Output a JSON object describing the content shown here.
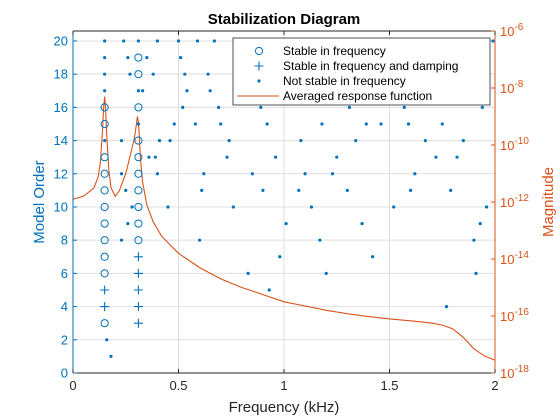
{
  "chart_data": {
    "type": "scatter",
    "title": "Stabilization Diagram",
    "xlabel": "Frequency (kHz)",
    "ylabel": "Model Order",
    "ylabel_right": "Magnitude",
    "xlim": [
      0,
      2
    ],
    "ylim": [
      0,
      20.6
    ],
    "ylim_right_log10": [
      -18,
      -6
    ],
    "x_ticks": [
      0,
      0.5,
      1,
      1.5,
      2
    ],
    "x_tick_labels": [
      "0",
      "0.5",
      "1",
      "1.5",
      "2"
    ],
    "y_ticks": [
      0,
      2,
      4,
      6,
      8,
      10,
      12,
      14,
      16,
      18,
      20
    ],
    "y_tick_labels": [
      "0",
      "2",
      "4",
      "6",
      "8",
      "10",
      "12",
      "14",
      "16",
      "18",
      "20"
    ],
    "y_right_ticks": [
      -18,
      -16,
      -14,
      -12,
      -10,
      -8,
      -6
    ],
    "y_right_tick_base": "10",
    "y_right_tick_exponents": [
      "-18",
      "-16",
      "-14",
      "-12",
      "-10",
      "-8",
      "-6"
    ],
    "grid": true,
    "legend_position": "top-right",
    "colors": {
      "left_axis": "#0072BD",
      "right_axis": "#D95319",
      "grid": "#dfdfdf"
    },
    "series": [
      {
        "name": "Stable in frequency",
        "marker": "circle",
        "points": [
          [
            0.15,
            3
          ],
          [
            0.15,
            6
          ],
          [
            0.15,
            7
          ],
          [
            0.15,
            8
          ],
          [
            0.15,
            9
          ],
          [
            0.15,
            10
          ],
          [
            0.15,
            11
          ],
          [
            0.15,
            12
          ],
          [
            0.15,
            13
          ],
          [
            0.15,
            15
          ],
          [
            0.15,
            16
          ],
          [
            0.31,
            8
          ],
          [
            0.31,
            9
          ],
          [
            0.31,
            10
          ],
          [
            0.31,
            11
          ],
          [
            0.31,
            12
          ],
          [
            0.31,
            13
          ],
          [
            0.31,
            14
          ],
          [
            0.31,
            16
          ],
          [
            0.31,
            18
          ],
          [
            0.31,
            19
          ]
        ]
      },
      {
        "name": "Stable in frequency and damping",
        "marker": "plus",
        "points": [
          [
            0.15,
            4
          ],
          [
            0.15,
            5
          ],
          [
            0.31,
            3
          ],
          [
            0.31,
            4
          ],
          [
            0.31,
            5
          ],
          [
            0.31,
            6
          ],
          [
            0.31,
            7
          ]
        ]
      },
      {
        "name": "Not stable in frequency",
        "marker": "dot",
        "points": [
          [
            0.15,
            14
          ],
          [
            0.15,
            17
          ],
          [
            0.15,
            18
          ],
          [
            0.15,
            19
          ],
          [
            0.15,
            20
          ],
          [
            0.31,
            15
          ],
          [
            0.31,
            17
          ],
          [
            0.31,
            20
          ],
          [
            0.16,
            2
          ],
          [
            0.18,
            1
          ],
          [
            0.23,
            8
          ],
          [
            0.23,
            12
          ],
          [
            0.23,
            14
          ],
          [
            0.24,
            20
          ],
          [
            0.25,
            11
          ],
          [
            0.26,
            9
          ],
          [
            0.26,
            19
          ],
          [
            0.27,
            18
          ],
          [
            0.28,
            10
          ],
          [
            0.33,
            17
          ],
          [
            0.35,
            19
          ],
          [
            0.36,
            13
          ],
          [
            0.38,
            18
          ],
          [
            0.39,
            13
          ],
          [
            0.4,
            20
          ],
          [
            0.41,
            14
          ],
          [
            0.4,
            12
          ],
          [
            0.45,
            10
          ],
          [
            0.46,
            14
          ],
          [
            0.48,
            15
          ],
          [
            0.5,
            20
          ],
          [
            0.51,
            19
          ],
          [
            0.52,
            16
          ],
          [
            0.53,
            18
          ],
          [
            0.54,
            17
          ],
          [
            0.58,
            15
          ],
          [
            0.59,
            20
          ],
          [
            0.6,
            8
          ],
          [
            0.61,
            11
          ],
          [
            0.62,
            12
          ],
          [
            0.64,
            18
          ],
          [
            0.65,
            17
          ],
          [
            0.67,
            20
          ],
          [
            0.69,
            16
          ],
          [
            0.7,
            15
          ],
          [
            0.73,
            13
          ],
          [
            0.74,
            14
          ],
          [
            0.76,
            10
          ],
          [
            0.77,
            17
          ],
          [
            0.8,
            20
          ],
          [
            0.83,
            6
          ],
          [
            0.85,
            12
          ],
          [
            0.86,
            18
          ],
          [
            0.87,
            20
          ],
          [
            0.89,
            16
          ],
          [
            0.9,
            11
          ],
          [
            0.92,
            15
          ],
          [
            0.93,
            5
          ],
          [
            0.94,
            18
          ],
          [
            0.96,
            13
          ],
          [
            0.98,
            7
          ],
          [
            1.0,
            19
          ],
          [
            1.01,
            9
          ],
          [
            1.03,
            18
          ],
          [
            1.05,
            17
          ],
          [
            1.07,
            11
          ],
          [
            1.08,
            14
          ],
          [
            1.09,
            19
          ],
          [
            1.1,
            12
          ],
          [
            1.11,
            17
          ],
          [
            1.13,
            10
          ],
          [
            1.15,
            20
          ],
          [
            1.17,
            8
          ],
          [
            1.18,
            15
          ],
          [
            1.2,
            6
          ],
          [
            1.21,
            20
          ],
          [
            1.22,
            17
          ],
          [
            1.23,
            12
          ],
          [
            1.25,
            13
          ],
          [
            1.26,
            18
          ],
          [
            1.29,
            19
          ],
          [
            1.3,
            11
          ],
          [
            1.31,
            16
          ],
          [
            1.34,
            14
          ],
          [
            1.37,
            9
          ],
          [
            1.39,
            15
          ],
          [
            1.4,
            20
          ],
          [
            1.42,
            7
          ],
          [
            1.43,
            18
          ],
          [
            1.46,
            15
          ],
          [
            1.48,
            17
          ],
          [
            1.5,
            19
          ],
          [
            1.52,
            10
          ],
          [
            1.54,
            19
          ],
          [
            1.57,
            16
          ],
          [
            1.59,
            15
          ],
          [
            1.6,
            11
          ],
          [
            1.62,
            12
          ],
          [
            1.64,
            20
          ],
          [
            1.67,
            14
          ],
          [
            1.69,
            17
          ],
          [
            1.7,
            20
          ],
          [
            1.72,
            13
          ],
          [
            1.73,
            18
          ],
          [
            1.75,
            15
          ],
          [
            1.77,
            4
          ],
          [
            1.79,
            11
          ],
          [
            1.82,
            13
          ],
          [
            1.85,
            14
          ],
          [
            1.86,
            18
          ],
          [
            1.88,
            17
          ],
          [
            1.9,
            8
          ],
          [
            1.91,
            6
          ],
          [
            1.93,
            9
          ],
          [
            1.94,
            16
          ],
          [
            1.96,
            10
          ],
          [
            1.97,
            18
          ],
          [
            1.99,
            20
          ]
        ]
      },
      {
        "name": "Averaged response function",
        "axis": "right",
        "line": true,
        "x": [
          0,
          0.05,
          0.1,
          0.12,
          0.13,
          0.14,
          0.145,
          0.15,
          0.155,
          0.16,
          0.17,
          0.18,
          0.2,
          0.22,
          0.25,
          0.27,
          0.29,
          0.3,
          0.305,
          0.31,
          0.315,
          0.32,
          0.33,
          0.35,
          0.38,
          0.42,
          0.5,
          0.6,
          0.7,
          0.8,
          0.9,
          1.0,
          1.1,
          1.2,
          1.3,
          1.4,
          1.5,
          1.6,
          1.7,
          1.75,
          1.8,
          1.85,
          1.9,
          1.95,
          2.0
        ],
        "log10_magnitude": [
          -11.9,
          -11.8,
          -11.5,
          -11.1,
          -10.6,
          -9.5,
          -8.7,
          -8.3,
          -8.8,
          -9.7,
          -10.9,
          -11.5,
          -11.8,
          -11.6,
          -11.0,
          -10.4,
          -9.8,
          -9.3,
          -9.0,
          -9.2,
          -9.8,
          -10.5,
          -11.3,
          -12.1,
          -12.7,
          -13.2,
          -13.8,
          -14.3,
          -14.7,
          -15.0,
          -15.25,
          -15.5,
          -15.65,
          -15.8,
          -15.92,
          -16.02,
          -16.1,
          -16.17,
          -16.25,
          -16.32,
          -16.45,
          -16.75,
          -17.15,
          -17.4,
          -17.55
        ]
      }
    ]
  },
  "legend": {
    "items": [
      {
        "label": "Stable in frequency"
      },
      {
        "label": "Stable in frequency and damping"
      },
      {
        "label": "Not stable in frequency"
      },
      {
        "label": "Averaged response function"
      }
    ]
  }
}
